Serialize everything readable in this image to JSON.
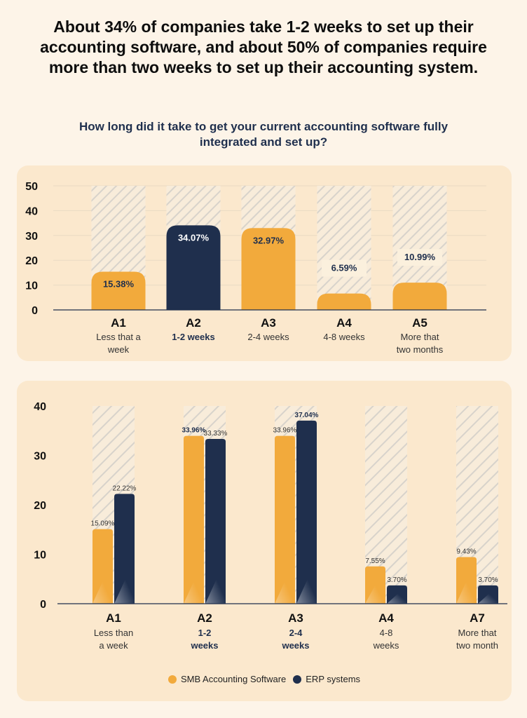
{
  "headline": "About 34% of companies take 1-2 weeks to set up their accounting software, and about 50% of companies require more than two weeks to set up their accounting system.",
  "question": "How long did it take to get your current accounting software fully integrated and set up?",
  "colors": {
    "orange": "#f2aa3c",
    "navy": "#1f2f4d",
    "background": "#fdf4e8",
    "panel": "#fbe8cd"
  },
  "chart_data": [
    {
      "type": "bar",
      "title": "How long did it take to get your current accounting software fully integrated and set up?",
      "categories": [
        "A1",
        "A2",
        "A3",
        "A4",
        "A5"
      ],
      "category_descriptions": [
        [
          "Less that a",
          "week"
        ],
        [
          "1-2 weeks"
        ],
        [
          "2-4 weeks"
        ],
        [
          "4-8 weeks"
        ],
        [
          "More that",
          "two months"
        ]
      ],
      "values": [
        15.38,
        34.07,
        32.97,
        6.59,
        10.99
      ],
      "value_labels": [
        "15.38%",
        "34.07%",
        "32.97%",
        "6.59%",
        "10.99%"
      ],
      "highlight_index": 1,
      "ylim": [
        0,
        50
      ],
      "yticks": [
        0,
        10,
        20,
        30,
        40,
        50
      ],
      "grid": true
    },
    {
      "type": "bar",
      "categories": [
        "A1",
        "A2",
        "A3",
        "A4",
        "A7"
      ],
      "category_descriptions": [
        [
          "Less than",
          "a week"
        ],
        [
          "1-2",
          "weeks"
        ],
        [
          "2-4",
          "weeks"
        ],
        [
          "4-8",
          "weeks"
        ],
        [
          "More that",
          "two month"
        ]
      ],
      "bold_description_indices": [
        1,
        2
      ],
      "series": [
        {
          "name": "SMB Accounting Software",
          "values": [
            15.09,
            33.96,
            33.96,
            7.55,
            9.43
          ],
          "labels": [
            "15.09%",
            "33.96%",
            "33.96%",
            "7.55%",
            "9.43%"
          ]
        },
        {
          "name": "ERP systems",
          "values": [
            22.22,
            33.33,
            37.04,
            3.7,
            3.7
          ],
          "labels": [
            "22.22%",
            "33.33%",
            "37.04%",
            "3.70%",
            "3.70%"
          ]
        }
      ],
      "bold_labels": [
        [
          1,
          0
        ],
        [
          2,
          1
        ]
      ],
      "ylim": [
        0,
        40
      ],
      "yticks": [
        0,
        10,
        20,
        30,
        40
      ],
      "legend": "bottom-center"
    }
  ],
  "legend": {
    "items": [
      {
        "label": "SMB Accounting Software",
        "color": "#f2aa3c"
      },
      {
        "label": "ERP systems",
        "color": "#1f2f4d"
      }
    ]
  }
}
